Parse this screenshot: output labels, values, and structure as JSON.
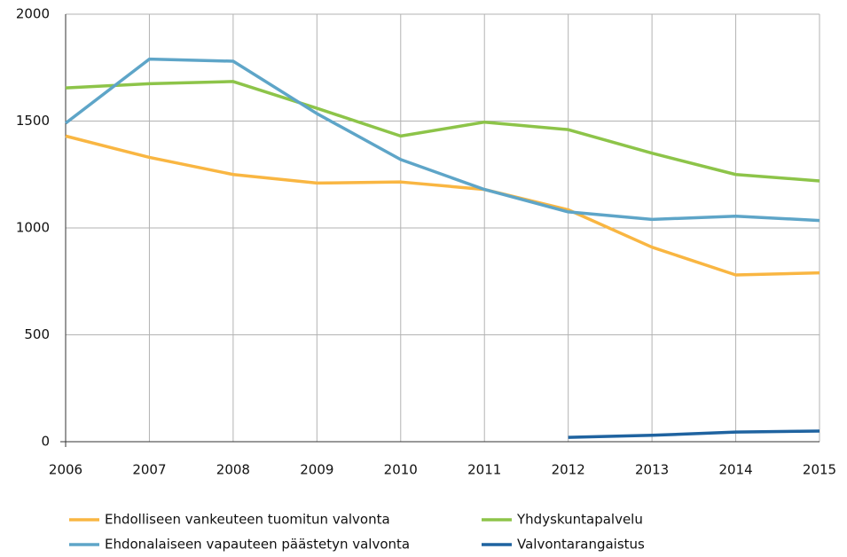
{
  "chart_data": {
    "type": "line",
    "x": [
      2006,
      2007,
      2008,
      2009,
      2010,
      2011,
      2012,
      2013,
      2014,
      2015
    ],
    "series": [
      {
        "name": "Ehdolliseen vankeuteen tuomitun valvonta",
        "color": "#f9b642",
        "values": [
          1430,
          1330,
          1250,
          1210,
          1215,
          1180,
          1085,
          910,
          780,
          790
        ]
      },
      {
        "name": "Yhdyskuntapalvelu",
        "color": "#8dc449",
        "values": [
          1655,
          1675,
          1685,
          1560,
          1430,
          1495,
          1460,
          1350,
          1250,
          1220
        ]
      },
      {
        "name": "Ehdonalaiseen vapauteen päästetyn valvonta",
        "color": "#5ea5c8",
        "values": [
          1490,
          1790,
          1780,
          1535,
          1320,
          1180,
          1075,
          1040,
          1055,
          1035
        ]
      },
      {
        "name": "Valvontarangaistus",
        "color": "#1f63a0",
        "values": [
          null,
          null,
          null,
          null,
          null,
          null,
          20,
          30,
          45,
          50
        ]
      }
    ],
    "xlim": [
      2006,
      2015
    ],
    "xticks": [
      2006,
      2007,
      2008,
      2009,
      2010,
      2011,
      2012,
      2013,
      2014,
      2015
    ],
    "ylim": [
      0,
      2000
    ],
    "yticks": [
      0,
      500,
      1000,
      1500,
      2000
    ],
    "grid": true,
    "legend": "bottom"
  }
}
